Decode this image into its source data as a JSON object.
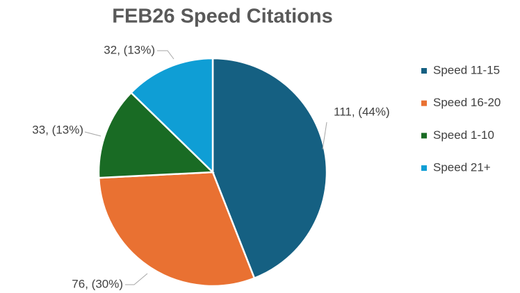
{
  "chart_data": {
    "type": "pie",
    "title": "FEB26 Speed Citations",
    "categories": [
      "Speed 11-15",
      "Speed 16-20",
      "Speed 1-10",
      "Speed 21+"
    ],
    "values": [
      111,
      76,
      33,
      32
    ],
    "value_labels": [
      "111, (44%)",
      "76, (30%)",
      "33, (13%)",
      "32, (13%)"
    ],
    "colors": [
      "#156082",
      "#e97132",
      "#196b24",
      "#0f9ed5"
    ],
    "legend": "right"
  }
}
